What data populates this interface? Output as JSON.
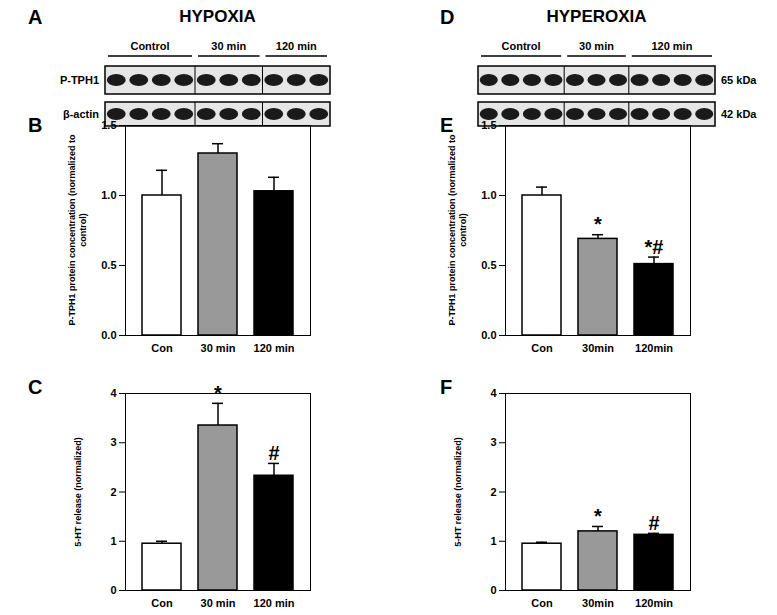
{
  "blots": [
    {
      "panel_label": "A",
      "title": "HYPOXIA",
      "groups": [
        {
          "label": "Control",
          "lanes": 4
        },
        {
          "label": "30 min",
          "lanes": 3
        },
        {
          "label": "120 min",
          "lanes": 3
        }
      ],
      "row_labels": [
        "P-TPH1",
        "β-actin"
      ],
      "label_side": "left"
    },
    {
      "panel_label": "D",
      "title": "HYPEROXIA",
      "groups": [
        {
          "label": "Control",
          "lanes": 4
        },
        {
          "label": "30 min",
          "lanes": 3
        },
        {
          "label": "120 min",
          "lanes": 4
        }
      ],
      "row_labels": [
        "65 kDa",
        "42 kDa"
      ],
      "label_side": "right"
    }
  ],
  "chart_data": [
    {
      "panel_label": "B",
      "type": "bar",
      "categories": [
        "Con",
        "30 min",
        "120 min"
      ],
      "values": [
        1.0,
        1.3,
        1.03
      ],
      "errors": [
        0.18,
        0.07,
        0.1
      ],
      "annotations": [
        null,
        null,
        null
      ],
      "colors": [
        "#ffffff",
        "#999999",
        "#000000"
      ],
      "ylabel": "P-TPH1 protein concentration (normalized to control)",
      "ylim": [
        0,
        1.5
      ],
      "yticks": [
        {
          "value": 0,
          "label": "0.0"
        },
        {
          "value": 0.5,
          "label": "0.5"
        },
        {
          "value": 1,
          "label": "1.0"
        },
        {
          "value": 1.5,
          "label": "1.5"
        }
      ]
    },
    {
      "panel_label": "C",
      "type": "bar",
      "categories": [
        "Con",
        "30 min",
        "120 min"
      ],
      "values": [
        0.95,
        3.35,
        2.33
      ],
      "errors": [
        0.05,
        0.45,
        0.25
      ],
      "annotations": [
        null,
        "*",
        "#"
      ],
      "colors": [
        "#ffffff",
        "#999999",
        "#000000"
      ],
      "ylabel": "5-HT release (normalized)",
      "ylim": [
        0,
        4
      ],
      "yticks": [
        0,
        1,
        2,
        3,
        4
      ]
    },
    {
      "panel_label": "E",
      "type": "bar",
      "categories": [
        "Con",
        "30min",
        "120min"
      ],
      "values": [
        1.0,
        0.69,
        0.51
      ],
      "errors": [
        0.06,
        0.03,
        0.05
      ],
      "annotations": [
        null,
        "*",
        "*#"
      ],
      "colors": [
        "#ffffff",
        "#999999",
        "#000000"
      ],
      "ylabel": "P-TPH1 protein concentration (normalized to control)",
      "ylim": [
        0,
        1.5
      ],
      "yticks": [
        {
          "value": 0,
          "label": "0.0"
        },
        {
          "value": 0.5,
          "label": "0.5"
        },
        {
          "value": 1,
          "label": "1.0"
        },
        {
          "value": 1.5,
          "label": "1.5"
        }
      ]
    },
    {
      "panel_label": "F",
      "type": "bar",
      "categories": [
        "Con",
        "30min",
        "120min"
      ],
      "values": [
        0.95,
        1.2,
        1.13
      ],
      "errors": [
        0.03,
        0.1,
        0.03
      ],
      "annotations": [
        null,
        "*",
        "#"
      ],
      "colors": [
        "#ffffff",
        "#999999",
        "#000000"
      ],
      "ylabel": "5-HT release (normalized)",
      "ylim": [
        0,
        4
      ],
      "yticks": [
        0,
        1,
        2,
        3,
        4
      ]
    }
  ]
}
